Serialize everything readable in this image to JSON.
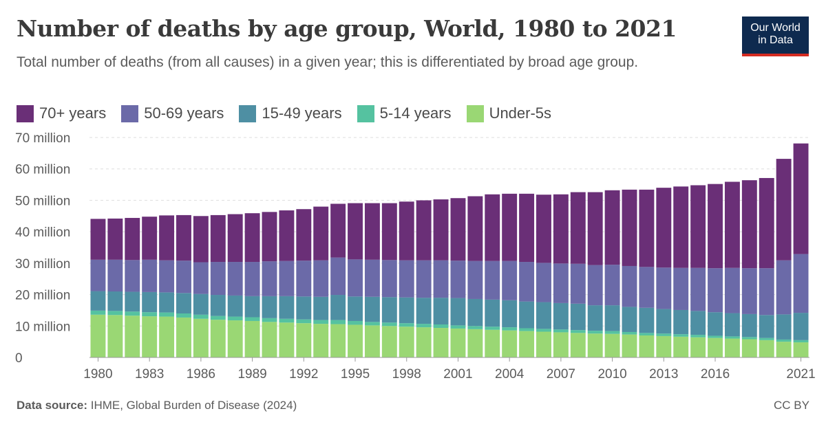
{
  "header": {
    "title": "Number of deaths by age group, World, 1980 to 2021",
    "subtitle": "Total number of deaths (from all causes) in a given year; this is differentiated by broad age group.",
    "logo_line1": "Our World",
    "logo_line2": "in Data"
  },
  "footer": {
    "source_label": "Data source:",
    "source_text": "IHME, Global Burden of Disease (2024)",
    "license": "CC BY"
  },
  "colors": {
    "70+ years": "#6a2f77",
    "50-69 years": "#6b6aa8",
    "15-49 years": "#4e8fa3",
    "5-14 years": "#55c2a0",
    "Under-5s": "#9ad774"
  },
  "chart_data": {
    "type": "bar",
    "stacked": true,
    "title": "Number of deaths by age group, World, 1980 to 2021",
    "ylim": [
      0,
      70
    ],
    "y_unit": "million",
    "y_ticks": [
      0,
      10,
      20,
      30,
      40,
      50,
      60,
      70
    ],
    "y_tick_labels": [
      "0",
      "10 million",
      "20 million",
      "30 million",
      "40 million",
      "50 million",
      "60 million",
      "70 million"
    ],
    "x_tick_labels": [
      "1980",
      "1983",
      "1986",
      "1989",
      "1992",
      "1995",
      "1998",
      "2001",
      "2004",
      "2007",
      "2010",
      "2013",
      "2016",
      "2021"
    ],
    "grid": true,
    "legend_position": "top",
    "categories": [
      1980,
      1981,
      1982,
      1983,
      1984,
      1985,
      1986,
      1987,
      1988,
      1989,
      1990,
      1991,
      1992,
      1993,
      1994,
      1995,
      1996,
      1997,
      1998,
      1999,
      2000,
      2001,
      2002,
      2003,
      2004,
      2005,
      2006,
      2007,
      2008,
      2009,
      2010,
      2011,
      2012,
      2013,
      2014,
      2015,
      2016,
      2017,
      2018,
      2019,
      2020,
      2021
    ],
    "series": [
      {
        "name": "Under-5s",
        "values": [
          13.6,
          13.5,
          13.3,
          13.1,
          13.0,
          12.7,
          12.3,
          12.0,
          11.8,
          11.6,
          11.3,
          11.1,
          10.9,
          10.7,
          10.6,
          10.4,
          10.2,
          10.0,
          9.8,
          9.6,
          9.4,
          9.2,
          9.0,
          8.8,
          8.6,
          8.4,
          8.2,
          8.0,
          7.8,
          7.6,
          7.5,
          7.3,
          7.0,
          6.8,
          6.6,
          6.4,
          6.2,
          6.0,
          5.8,
          5.5,
          5.0,
          4.8
        ]
      },
      {
        "name": "5-14 years",
        "values": [
          1.3,
          1.3,
          1.3,
          1.3,
          1.3,
          1.3,
          1.3,
          1.2,
          1.2,
          1.2,
          1.2,
          1.2,
          1.2,
          1.2,
          1.3,
          1.2,
          1.1,
          1.1,
          1.1,
          1.1,
          1.1,
          1.0,
          1.0,
          1.0,
          1.0,
          0.9,
          0.9,
          0.9,
          0.9,
          0.9,
          0.9,
          0.8,
          0.8,
          0.8,
          0.8,
          0.8,
          0.7,
          0.7,
          0.7,
          0.7,
          0.7,
          0.7
        ]
      },
      {
        "name": "15-49 years",
        "values": [
          6.2,
          6.2,
          6.3,
          6.4,
          6.4,
          6.5,
          6.6,
          6.7,
          6.7,
          6.7,
          7.0,
          7.2,
          7.3,
          7.4,
          8.0,
          7.8,
          8.0,
          8.1,
          8.2,
          8.3,
          8.5,
          8.7,
          8.6,
          8.6,
          8.6,
          8.5,
          8.5,
          8.4,
          8.4,
          8.1,
          8.2,
          8.0,
          8.0,
          7.8,
          7.7,
          7.6,
          7.5,
          7.4,
          7.3,
          7.3,
          8.0,
          8.7
        ]
      },
      {
        "name": "50-69 years",
        "values": [
          10.0,
          10.1,
          10.1,
          10.3,
          10.2,
          10.3,
          10.1,
          10.5,
          10.7,
          10.9,
          11.1,
          11.2,
          11.4,
          11.6,
          11.9,
          11.8,
          11.8,
          11.8,
          11.8,
          11.9,
          11.9,
          11.9,
          12.1,
          12.3,
          12.5,
          12.6,
          12.5,
          12.6,
          12.7,
          12.8,
          12.9,
          13.0,
          13.0,
          13.2,
          13.4,
          13.7,
          14.0,
          14.4,
          14.6,
          14.9,
          17.2,
          18.7
        ]
      },
      {
        "name": "70+ years",
        "values": [
          13.0,
          13.1,
          13.4,
          13.7,
          14.3,
          14.5,
          14.7,
          14.9,
          15.2,
          15.5,
          15.7,
          16.1,
          16.4,
          17.1,
          17.1,
          17.9,
          18.0,
          18.1,
          18.7,
          19.1,
          19.4,
          19.9,
          20.6,
          21.2,
          21.4,
          21.7,
          21.7,
          22.0,
          22.8,
          23.2,
          23.7,
          24.3,
          24.6,
          25.4,
          25.9,
          26.3,
          26.8,
          27.4,
          28.0,
          28.7,
          32.3,
          35.2
        ]
      }
    ]
  }
}
